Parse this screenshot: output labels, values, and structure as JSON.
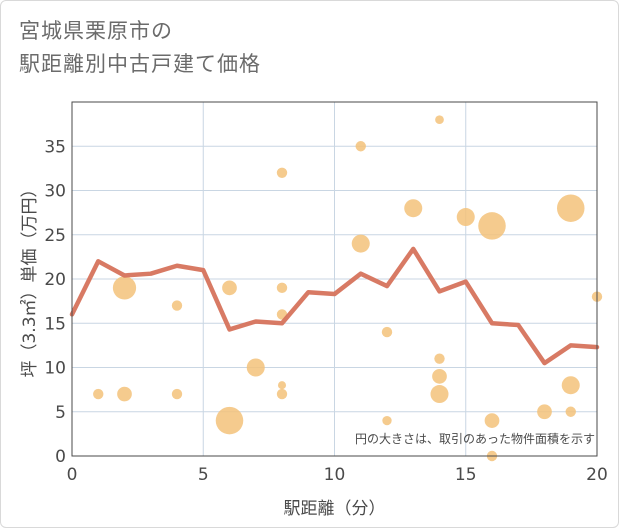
{
  "title": {
    "line1": "宮城県栗原市の",
    "line2": "駅距離別中古戸建て価格"
  },
  "chart_data": {
    "type": "scatter",
    "xlabel": "駅距離（分）",
    "ylabel": "坪（3.3㎡）単価（万円）",
    "xlim": [
      0,
      20
    ],
    "ylim": [
      0,
      40
    ],
    "xticks": [
      0,
      5,
      10,
      15,
      20
    ],
    "yticks": [
      0,
      5,
      10,
      15,
      20,
      25,
      30,
      35
    ],
    "grid": true,
    "note": "円の大きさは、取引のあった物件面積を示す",
    "colors": {
      "bubble": "#f3c27a",
      "line": "#d6735c",
      "grid": "#c9d6e3",
      "plot_border": "#4a4a4a"
    },
    "bubbles": [
      {
        "x": 1,
        "y": 7,
        "size": 1
      },
      {
        "x": 2,
        "y": 19,
        "size": 5
      },
      {
        "x": 2,
        "y": 7,
        "size": 2
      },
      {
        "x": 4,
        "y": 17,
        "size": 1
      },
      {
        "x": 4,
        "y": 7,
        "size": 1
      },
      {
        "x": 6,
        "y": 19,
        "size": 2
      },
      {
        "x": 6,
        "y": 4,
        "size": 7
      },
      {
        "x": 7,
        "y": 10,
        "size": 3
      },
      {
        "x": 8,
        "y": 32,
        "size": 1
      },
      {
        "x": 8,
        "y": 19,
        "size": 1
      },
      {
        "x": 8,
        "y": 16,
        "size": 1
      },
      {
        "x": 8,
        "y": 8,
        "size": 0.6
      },
      {
        "x": 8,
        "y": 7,
        "size": 1
      },
      {
        "x": 11,
        "y": 35,
        "size": 1
      },
      {
        "x": 11,
        "y": 24,
        "size": 3
      },
      {
        "x": 12,
        "y": 14,
        "size": 1
      },
      {
        "x": 12,
        "y": 4,
        "size": 0.8
      },
      {
        "x": 13,
        "y": 28,
        "size": 3
      },
      {
        "x": 14,
        "y": 38,
        "size": 0.7
      },
      {
        "x": 14,
        "y": 11,
        "size": 1
      },
      {
        "x": 14,
        "y": 9,
        "size": 2
      },
      {
        "x": 14,
        "y": 7,
        "size": 3
      },
      {
        "x": 15,
        "y": 27,
        "size": 3
      },
      {
        "x": 16,
        "y": 26,
        "size": 7
      },
      {
        "x": 16,
        "y": 4,
        "size": 2
      },
      {
        "x": 16,
        "y": 0,
        "size": 1
      },
      {
        "x": 18,
        "y": 5,
        "size": 2
      },
      {
        "x": 19,
        "y": 28,
        "size": 7
      },
      {
        "x": 19,
        "y": 8,
        "size": 3
      },
      {
        "x": 19,
        "y": 5,
        "size": 1
      },
      {
        "x": 20,
        "y": 18,
        "size": 1
      }
    ],
    "line": {
      "x": [
        0,
        1,
        2,
        3,
        4,
        5,
        6,
        7,
        8,
        9,
        10,
        11,
        12,
        13,
        14,
        15,
        16,
        17,
        18,
        19,
        20
      ],
      "y": [
        16,
        22,
        20.4,
        20.6,
        21.5,
        21,
        14.3,
        15.2,
        15,
        18.5,
        18.3,
        20.6,
        19.2,
        23.4,
        18.6,
        19.7,
        15,
        14.8,
        10.5,
        12.5,
        12.3
      ]
    }
  }
}
